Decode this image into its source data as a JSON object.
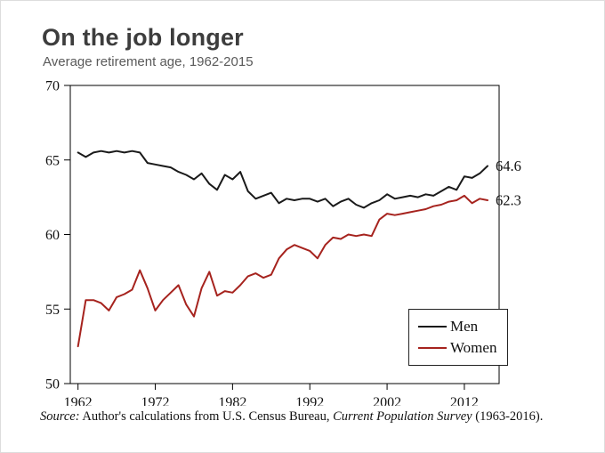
{
  "header": {
    "title": "On the job longer",
    "subtitle": "Average retirement age, 1962-2015"
  },
  "source": {
    "prefix_italic": "Source:",
    "body": " Author's calculations from U.S. Census Bureau, ",
    "journal_italic": "Current Population Survey",
    "suffix": " (1963-2016)."
  },
  "chart_data": {
    "type": "line",
    "title": "On the job longer",
    "subtitle": "Average retirement age, 1962-2015",
    "ylim": [
      50,
      70
    ],
    "yticks": [
      50,
      55,
      60,
      65,
      70
    ],
    "xticks": [
      1962,
      1972,
      1982,
      1992,
      2002,
      2012
    ],
    "grid": false,
    "legend_position": "lower right",
    "x": [
      1962,
      1963,
      1964,
      1965,
      1966,
      1967,
      1968,
      1969,
      1970,
      1971,
      1972,
      1973,
      1974,
      1975,
      1976,
      1977,
      1978,
      1979,
      1980,
      1981,
      1982,
      1983,
      1984,
      1985,
      1986,
      1987,
      1988,
      1989,
      1990,
      1991,
      1992,
      1993,
      1994,
      1995,
      1996,
      1997,
      1998,
      1999,
      2000,
      2001,
      2002,
      2003,
      2004,
      2005,
      2006,
      2007,
      2008,
      2009,
      2010,
      2011,
      2012,
      2013,
      2014,
      2015
    ],
    "series": [
      {
        "name": "Men",
        "color": "#1a1a1a",
        "end_label": "64.6",
        "values": [
          65.5,
          65.2,
          65.5,
          65.6,
          65.5,
          65.6,
          65.5,
          65.6,
          65.5,
          64.8,
          64.7,
          64.6,
          64.5,
          64.2,
          64.0,
          63.7,
          64.1,
          63.4,
          63.0,
          64.0,
          63.7,
          64.2,
          62.9,
          62.4,
          62.6,
          62.8,
          62.1,
          62.4,
          62.3,
          62.4,
          62.4,
          62.2,
          62.4,
          61.9,
          62.2,
          62.4,
          62.0,
          61.8,
          62.1,
          62.3,
          62.7,
          62.4,
          62.5,
          62.6,
          62.5,
          62.7,
          62.6,
          62.9,
          63.2,
          63.0,
          63.9,
          63.8,
          64.1,
          64.6
        ]
      },
      {
        "name": "Women",
        "color": "#a6231e",
        "end_label": "62.3",
        "values": [
          52.5,
          55.6,
          55.6,
          55.4,
          54.9,
          55.8,
          56.0,
          56.3,
          57.6,
          56.4,
          54.9,
          55.6,
          56.1,
          56.6,
          55.3,
          54.5,
          56.4,
          57.5,
          55.9,
          56.2,
          56.1,
          56.6,
          57.2,
          57.4,
          57.1,
          57.3,
          58.4,
          59.0,
          59.3,
          59.1,
          58.9,
          58.4,
          59.3,
          59.8,
          59.7,
          60.0,
          59.9,
          60.0,
          59.9,
          61.0,
          61.4,
          61.3,
          61.4,
          61.5,
          61.6,
          61.7,
          61.9,
          62.0,
          62.2,
          62.3,
          62.6,
          62.1,
          62.4,
          62.3
        ]
      }
    ]
  }
}
